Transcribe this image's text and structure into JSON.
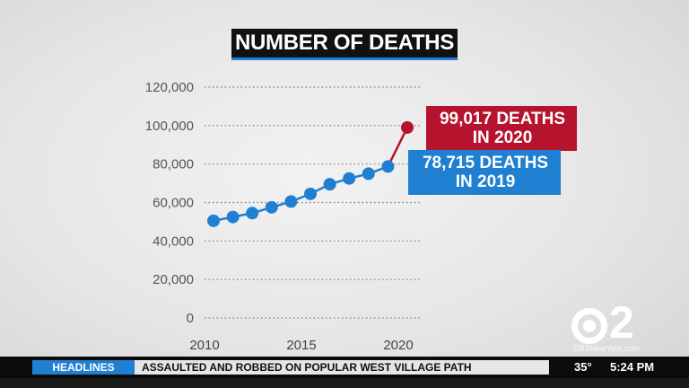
{
  "chart_data": {
    "type": "line",
    "title": "NUMBER OF DEATHS",
    "xlabel": "",
    "ylabel": "",
    "x_ticks": [
      "2010",
      "2015",
      "2020"
    ],
    "y_ticks": [
      "0",
      "20,000",
      "40,000",
      "60,000",
      "80,000",
      "100,000",
      "120,000"
    ],
    "xlim": [
      2010,
      2020
    ],
    "ylim": [
      0,
      120000
    ],
    "grid": "dotted horizontal",
    "series": [
      {
        "color": "#1f7fd0",
        "x": [
          2010,
          2011,
          2012,
          2013,
          2014,
          2015,
          2016,
          2017,
          2018,
          2019
        ],
        "y": [
          50500,
          52500,
          54500,
          57500,
          60500,
          64500,
          69500,
          72500,
          75000,
          78715
        ]
      },
      {
        "color": "#b5132e",
        "x": [
          2019,
          2020
        ],
        "y": [
          78715,
          99017
        ]
      }
    ],
    "annotations": [
      {
        "text_line1": "99,017 DEATHS",
        "text_line2": "IN 2020",
        "color": "#b5132e"
      },
      {
        "text_line1": "78,715 DEATHS",
        "text_line2": "IN 2019",
        "color": "#1f7fd0"
      }
    ]
  },
  "logo": {
    "number": "2",
    "site": "CBSNewYork.com"
  },
  "ticker": {
    "label": "HEADLINES",
    "story": "ASSAULTED AND ROBBED ON POPULAR WEST VILLAGE PATH",
    "temperature": "35°",
    "time": "5:24 PM"
  }
}
